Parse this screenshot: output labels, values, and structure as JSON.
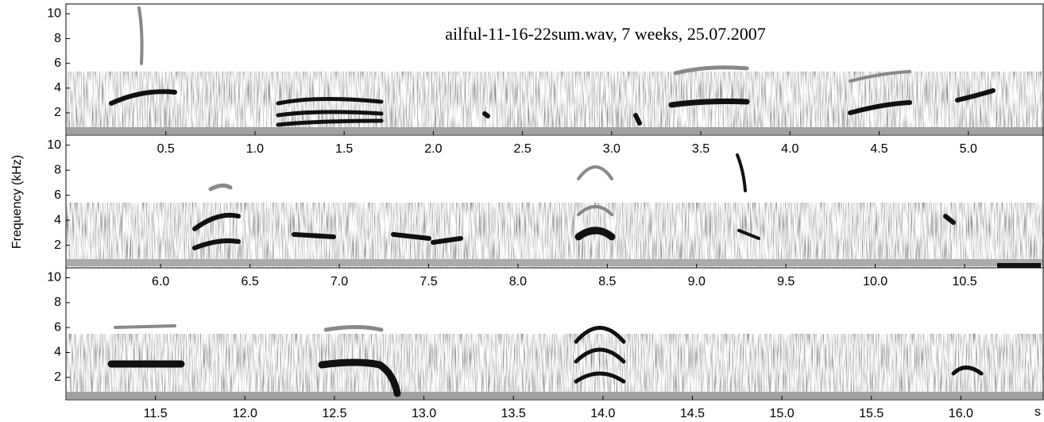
{
  "chart_data": [
    {
      "type": "spectrogram",
      "title": "ailful-11-16-22sum.wav, 7 weeks, 25.07.2007",
      "ylabel": "Frequency (kHz)",
      "xlim": [
        -0.06,
        5.42
      ],
      "ylim": [
        0.2,
        10.8
      ],
      "xticks": [
        0.5,
        {
          "value": 1,
          "label": "1.0"
        },
        1.5,
        {
          "value": 2,
          "label": "2.0"
        },
        2.5,
        {
          "value": 3,
          "label": "3.0"
        },
        3.5,
        {
          "value": 4,
          "label": "4.0"
        },
        4.5,
        {
          "value": 5,
          "label": "5.0"
        }
      ],
      "yticks": [
        2,
        4,
        6,
        8,
        10
      ]
    },
    {
      "type": "spectrogram",
      "xlim": [
        5.47,
        10.94
      ],
      "ylim": [
        0.2,
        10.8
      ],
      "xticks": [
        {
          "value": 6,
          "label": "6.0"
        },
        6.5,
        {
          "value": 7,
          "label": "7.0"
        },
        7.5,
        {
          "value": 8,
          "label": "8.0"
        },
        8.5,
        {
          "value": 9,
          "label": "9.0"
        },
        9.5,
        {
          "value": 10,
          "label": "10.0"
        },
        10.5
      ],
      "yticks": [
        2,
        4,
        6,
        8,
        10
      ]
    },
    {
      "type": "spectrogram",
      "xlabel": "s",
      "xlim": [
        11.0,
        16.46
      ],
      "ylim": [
        0.2,
        10.8
      ],
      "xticks": [
        11.5,
        {
          "value": 12,
          "label": "12.0"
        },
        12.5,
        {
          "value": 13,
          "label": "13.0"
        },
        13.5,
        {
          "value": 14,
          "label": "14.0"
        },
        14.5,
        {
          "value": 15,
          "label": "15.0"
        },
        15.5,
        {
          "value": 16,
          "label": "16.0"
        }
      ],
      "yticks": [
        2,
        4,
        6,
        8,
        10
      ]
    }
  ]
}
